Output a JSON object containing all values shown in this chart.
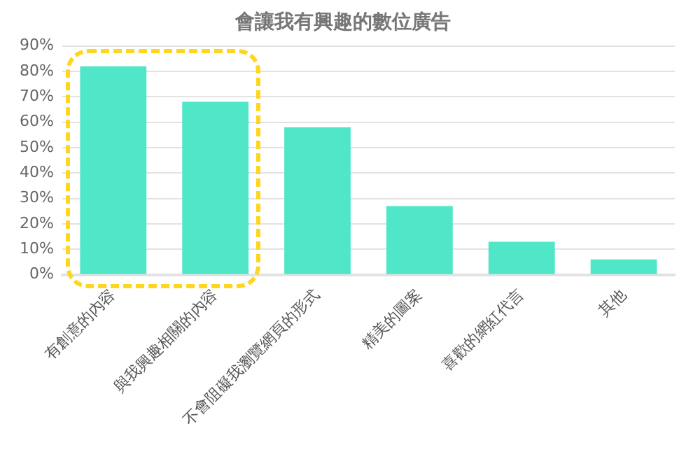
{
  "chart_data": {
    "type": "bar",
    "title": "會讓我有興趣的數位廣告",
    "categories": [
      "有創意的內容",
      "與我興趣相關的內容",
      "不會阻礙我瀏覽網頁的形式",
      "精美的圖案",
      "喜歡的網紅代言",
      "其他"
    ],
    "values": [
      82,
      68,
      58,
      27,
      13,
      6
    ],
    "color": "#50e6c8",
    "ylim": [
      0,
      90
    ],
    "yticks": [
      {
        "value": 0,
        "label": "0%"
      },
      {
        "value": 10,
        "label": "10%"
      },
      {
        "value": 20,
        "label": "20%"
      },
      {
        "value": 30,
        "label": "30%"
      },
      {
        "value": 40,
        "label": "40%"
      },
      {
        "value": 50,
        "label": "50%"
      },
      {
        "value": 60,
        "label": "60%"
      },
      {
        "value": 70,
        "label": "70%"
      },
      {
        "value": 80,
        "label": "80%"
      },
      {
        "value": 90,
        "label": "90%"
      }
    ],
    "grid": "y",
    "legend": false
  }
}
